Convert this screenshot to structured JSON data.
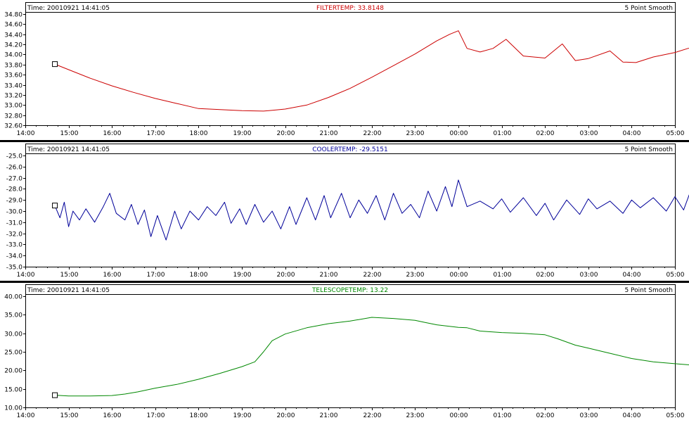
{
  "x_ticks": [
    "14:00",
    "15:00",
    "16:00",
    "17:00",
    "18:00",
    "19:00",
    "20:00",
    "21:00",
    "22:00",
    "23:00",
    "00:00",
    "01:00",
    "02:00",
    "03:00",
    "04:00",
    "05:00"
  ],
  "chart_data": [
    {
      "type": "line",
      "header": {
        "time": "Time: 20010921 14:41:05",
        "smooth": "5 Point Smooth"
      },
      "title": "FILTERTEMP: 33.8148",
      "color": "#cc0000",
      "ylim": [
        32.6,
        34.8
      ],
      "ystep": 0.2,
      "ydecimals": 2,
      "y_ticks": [
        "32.60",
        "32.80",
        "33.00",
        "33.20",
        "33.40",
        "33.60",
        "33.80",
        "34.00",
        "34.20",
        "34.40",
        "34.60",
        "34.80"
      ],
      "marker": {
        "x": 14.683,
        "y": 33.81
      },
      "series": [
        {
          "x": [
            14.68,
            15.0,
            15.5,
            16.0,
            16.5,
            17.0,
            17.5,
            18.0,
            18.5,
            19.0,
            19.5,
            20.0,
            20.5,
            21.0,
            21.5,
            22.0,
            22.5,
            23.0,
            23.5,
            23.8,
            24.0,
            24.2,
            24.5,
            24.8,
            25.1,
            25.5,
            26.0,
            26.4,
            26.7,
            27.0,
            27.5,
            27.8,
            28.1,
            28.5,
            29.0,
            29.3,
            29.55
          ],
          "y": [
            33.81,
            33.7,
            33.53,
            33.38,
            33.25,
            33.13,
            33.03,
            32.93,
            32.91,
            32.89,
            32.88,
            32.92,
            33.0,
            33.15,
            33.33,
            33.55,
            33.78,
            34.01,
            34.27,
            34.4,
            34.47,
            34.12,
            34.05,
            34.12,
            34.3,
            33.97,
            33.93,
            34.21,
            33.88,
            33.92,
            34.07,
            33.85,
            33.84,
            33.95,
            34.04,
            34.12,
            34.14
          ]
        }
      ]
    },
    {
      "type": "line",
      "header": {
        "time": "Time: 20010921 14:41:05",
        "smooth": "5 Point Smooth"
      },
      "title": "COOLERTEMP: -29.5151",
      "color": "#000099",
      "ylim": [
        -35.0,
        -25.0
      ],
      "ystep": 1.0,
      "ydecimals": 1,
      "y_ticks": [
        "-35.0",
        "-34.0",
        "-33.0",
        "-32.0",
        "-31.0",
        "-30.0",
        "-29.0",
        "-28.0",
        "-27.0",
        "-26.0",
        "-25.0"
      ],
      "marker": {
        "x": 14.683,
        "y": -29.5
      },
      "series": [
        {
          "x": [
            14.68,
            14.8,
            14.9,
            15.0,
            15.1,
            15.25,
            15.4,
            15.6,
            15.8,
            15.95,
            16.1,
            16.3,
            16.45,
            16.6,
            16.75,
            16.9,
            17.05,
            17.25,
            17.45,
            17.6,
            17.8,
            18.0,
            18.2,
            18.4,
            18.6,
            18.75,
            18.95,
            19.1,
            19.3,
            19.5,
            19.7,
            19.9,
            20.1,
            20.25,
            20.5,
            20.7,
            20.9,
            21.05,
            21.3,
            21.5,
            21.7,
            21.9,
            22.1,
            22.3,
            22.5,
            22.7,
            22.9,
            23.1,
            23.3,
            23.5,
            23.7,
            23.85,
            24.0,
            24.2,
            24.5,
            24.8,
            25.0,
            25.2,
            25.5,
            25.8,
            26.0,
            26.2,
            26.5,
            26.8,
            27.0,
            27.2,
            27.5,
            27.8,
            28.0,
            28.2,
            28.5,
            28.8,
            29.0,
            29.2,
            29.4,
            29.55
          ],
          "y": [
            -29.5,
            -30.6,
            -29.2,
            -31.4,
            -30.0,
            -30.8,
            -29.8,
            -31.0,
            -29.6,
            -28.4,
            -30.2,
            -30.8,
            -29.4,
            -31.2,
            -29.9,
            -32.3,
            -30.4,
            -32.6,
            -30.0,
            -31.6,
            -30.0,
            -30.8,
            -29.6,
            -30.4,
            -29.2,
            -31.1,
            -29.8,
            -31.2,
            -29.4,
            -31.0,
            -30.0,
            -31.6,
            -29.6,
            -31.2,
            -28.8,
            -30.8,
            -28.6,
            -30.6,
            -28.4,
            -30.6,
            -29.0,
            -30.2,
            -28.6,
            -30.8,
            -28.4,
            -30.2,
            -29.4,
            -30.6,
            -28.2,
            -30.0,
            -27.8,
            -29.6,
            -27.2,
            -29.6,
            -29.1,
            -29.8,
            -28.9,
            -30.1,
            -28.8,
            -30.4,
            -29.3,
            -30.8,
            -29.0,
            -30.3,
            -28.9,
            -29.8,
            -29.1,
            -30.2,
            -29.0,
            -29.7,
            -28.8,
            -30.0,
            -28.7,
            -29.9,
            -27.8,
            -29.5
          ]
        }
      ]
    },
    {
      "type": "line",
      "header": {
        "time": "Time: 20010921 14:41:05",
        "smooth": "5 Point Smooth"
      },
      "title": "TELESCOPETEMP: 13.22",
      "color": "#008800",
      "ylim": [
        10.0,
        40.0
      ],
      "ystep": 5.0,
      "ydecimals": 2,
      "y_ticks": [
        "10.00",
        "15.00",
        "20.00",
        "25.00",
        "30.00",
        "35.00",
        "40.00"
      ],
      "marker": {
        "x": 14.683,
        "y": 13.3
      },
      "series": [
        {
          "x": [
            14.68,
            15.0,
            15.5,
            16.0,
            16.3,
            16.6,
            17.0,
            17.5,
            18.0,
            18.5,
            19.0,
            19.3,
            19.5,
            19.7,
            20.0,
            20.5,
            21.0,
            21.5,
            22.0,
            22.5,
            23.0,
            23.2,
            23.5,
            24.0,
            24.2,
            24.5,
            25.0,
            25.5,
            26.0,
            26.3,
            26.7,
            27.0,
            27.5,
            28.0,
            28.5,
            29.0,
            29.3,
            29.55
          ],
          "y": [
            13.3,
            13.1,
            13.1,
            13.2,
            13.6,
            14.2,
            15.2,
            16.2,
            17.6,
            19.2,
            21.0,
            22.3,
            25.0,
            28.0,
            29.8,
            31.5,
            32.6,
            33.3,
            34.3,
            34.0,
            33.5,
            33.0,
            32.3,
            31.6,
            31.5,
            30.6,
            30.2,
            30.0,
            29.6,
            28.5,
            26.8,
            26.0,
            24.6,
            23.2,
            22.3,
            21.8,
            21.5,
            21.4
          ]
        }
      ]
    }
  ]
}
